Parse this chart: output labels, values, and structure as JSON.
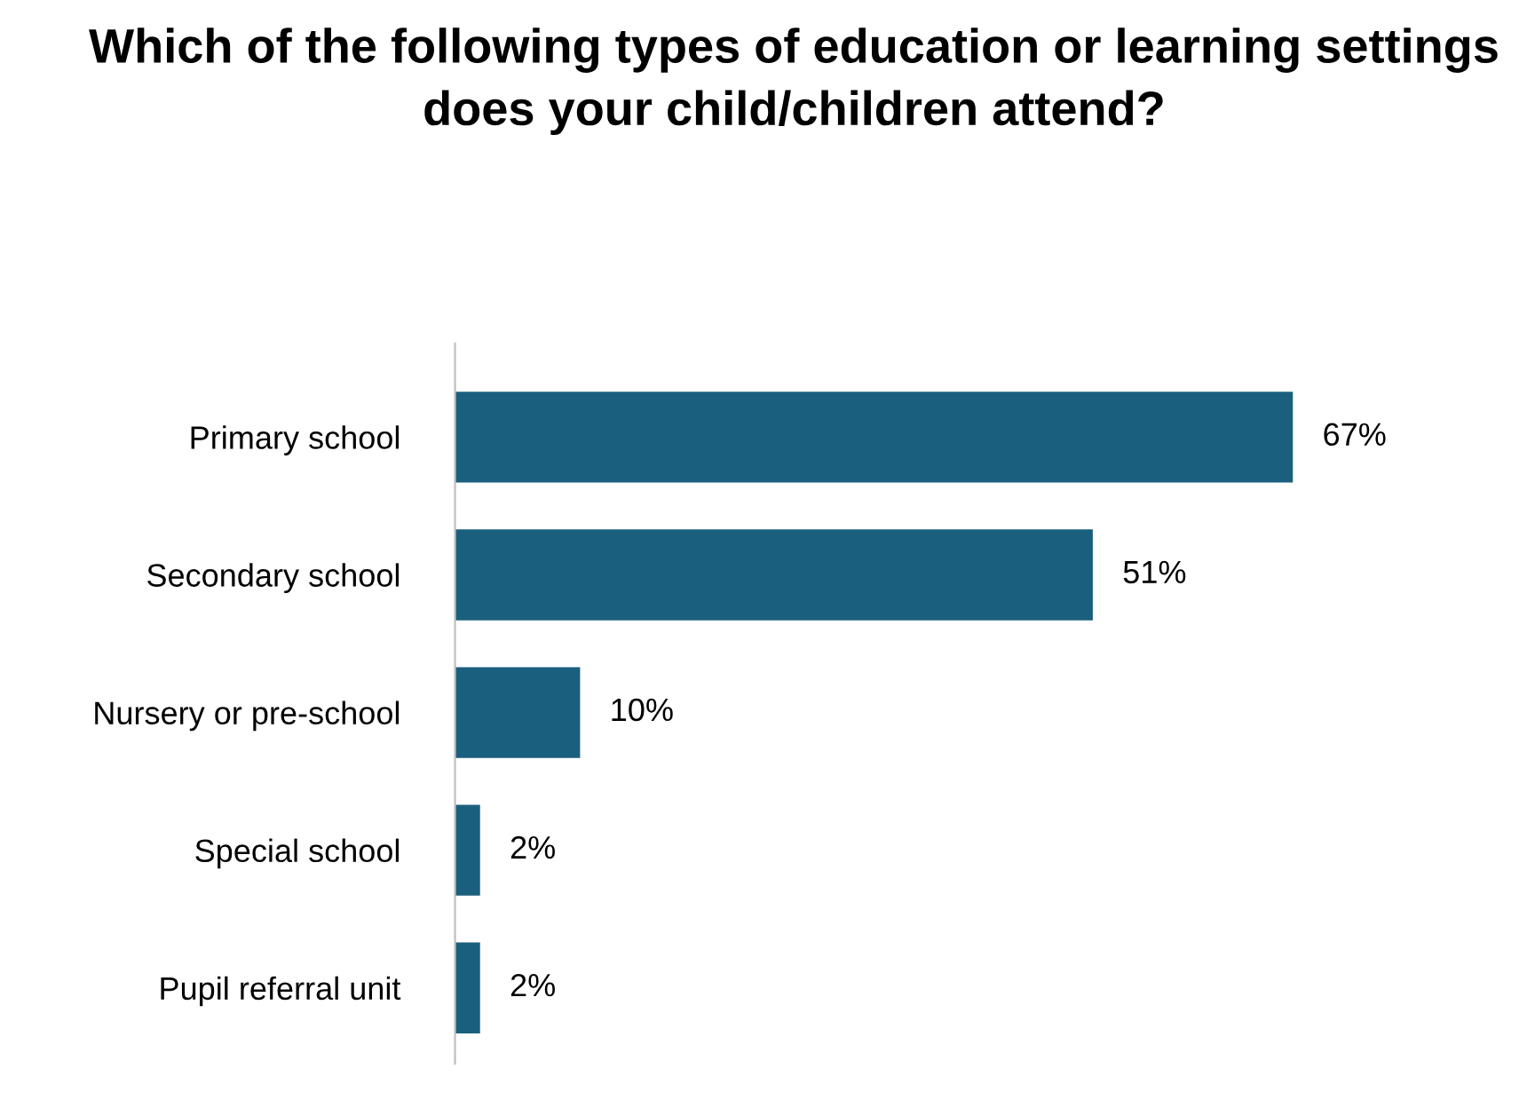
{
  "chart_data": {
    "type": "bar",
    "orientation": "horizontal",
    "title": "Which of the following types of education or learning settings does your child/children attend?",
    "categories": [
      "Primary school",
      "Secondary school",
      "Nursery or pre-school",
      "Special school",
      "Pupil referral unit"
    ],
    "values": [
      67,
      51,
      10,
      2,
      2
    ],
    "value_labels": [
      "67%",
      "51%",
      "10%",
      "2%",
      "2%"
    ],
    "color": "#1b5f7e",
    "grid": false,
    "legend": false
  }
}
